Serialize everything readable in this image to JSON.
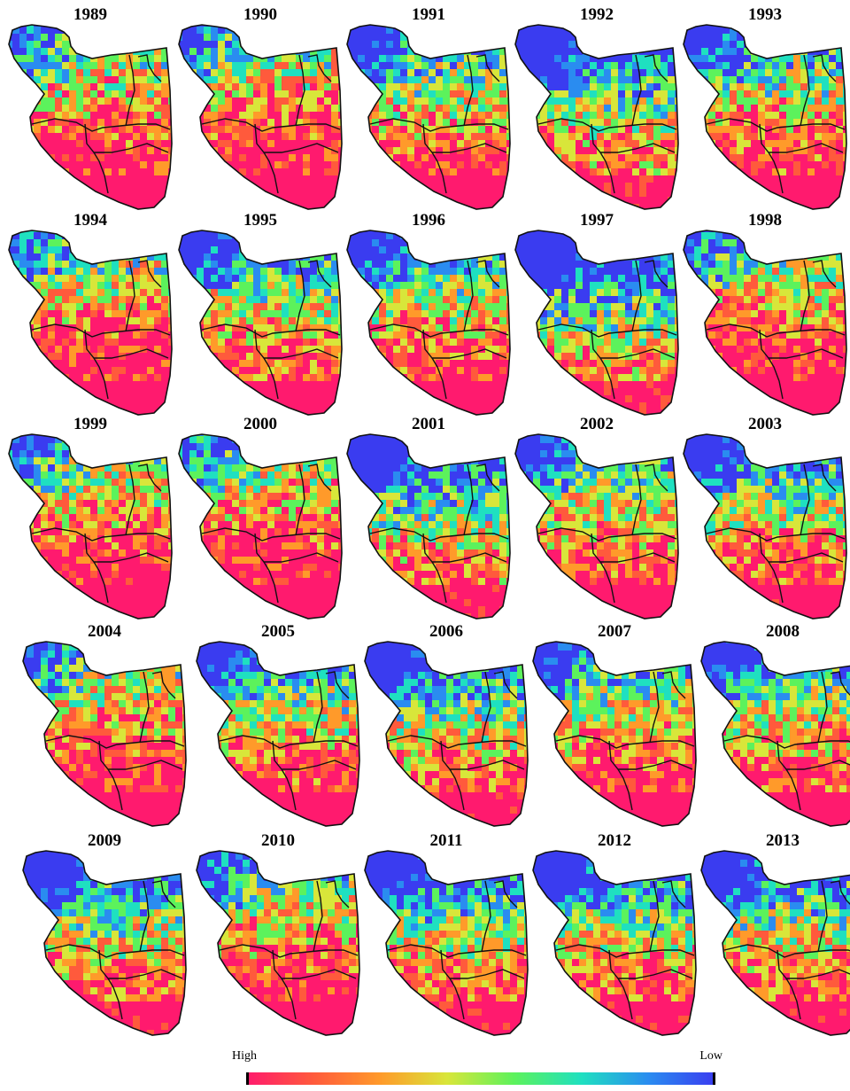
{
  "panels": [
    {
      "year": "1989",
      "blue": 0.3,
      "seed": 11
    },
    {
      "year": "1990",
      "blue": 0.3,
      "seed": 23
    },
    {
      "year": "1991",
      "blue": 0.42,
      "seed": 37
    },
    {
      "year": "1992",
      "blue": 0.55,
      "seed": 41
    },
    {
      "year": "1993",
      "blue": 0.4,
      "seed": 53
    },
    {
      "year": "1994",
      "blue": 0.3,
      "seed": 67
    },
    {
      "year": "1995",
      "blue": 0.45,
      "seed": 71
    },
    {
      "year": "1996",
      "blue": 0.42,
      "seed": 83
    },
    {
      "year": "1997",
      "blue": 0.6,
      "seed": 97
    },
    {
      "year": "1998",
      "blue": 0.3,
      "seed": 101
    },
    {
      "year": "1999",
      "blue": 0.3,
      "seed": 113
    },
    {
      "year": "2000",
      "blue": 0.28,
      "seed": 127
    },
    {
      "year": "2001",
      "blue": 0.55,
      "seed": 131
    },
    {
      "year": "2002",
      "blue": 0.4,
      "seed": 149
    },
    {
      "year": "2003",
      "blue": 0.45,
      "seed": 151
    },
    {
      "year": "2004",
      "blue": 0.3,
      "seed": 163
    },
    {
      "year": "2005",
      "blue": 0.42,
      "seed": 173
    },
    {
      "year": "2006",
      "blue": 0.5,
      "seed": 181
    },
    {
      "year": "2007",
      "blue": 0.4,
      "seed": 191
    },
    {
      "year": "2008",
      "blue": 0.42,
      "seed": 199
    },
    {
      "year": "2009",
      "blue": 0.5,
      "seed": 211
    },
    {
      "year": "2010",
      "blue": 0.35,
      "seed": 223
    },
    {
      "year": "2011",
      "blue": 0.52,
      "seed": 227
    },
    {
      "year": "2012",
      "blue": 0.5,
      "seed": 239
    },
    {
      "year": "2013",
      "blue": 0.48,
      "seed": 241
    }
  ],
  "legend": {
    "high_label": "High",
    "low_label": "Low",
    "colors": [
      "#ff1a6e",
      "#ff5a3c",
      "#ff9a2a",
      "#d8e63a",
      "#5cf25c",
      "#1fe0c0",
      "#2a8cf0",
      "#3a3cf0"
    ]
  }
}
